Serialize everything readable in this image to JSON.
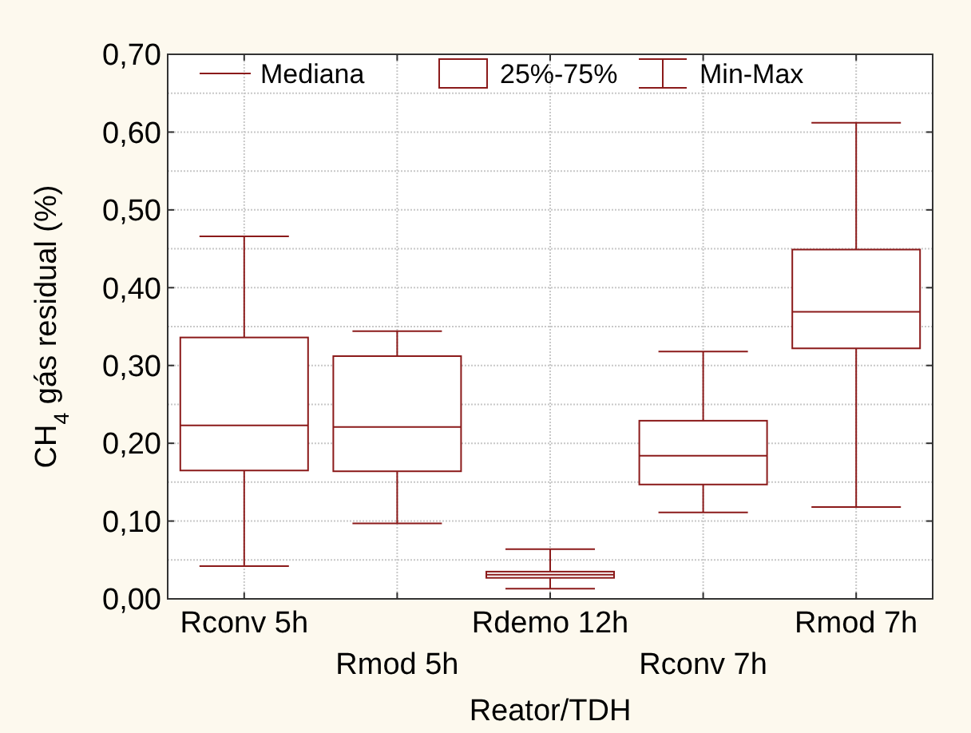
{
  "chart_data": {
    "type": "box",
    "xlabel": "Reator/TDH",
    "ylabel": "CH$_{4}$ gás residual (%)",
    "categories": [
      "Rconv 5h",
      "Rmod 5h",
      "Rdemo 12h",
      "Rconv 7h",
      "Rmod 7h"
    ],
    "series": [
      {
        "color": "#8b1a1a",
        "boxes": [
          {
            "low": 0.042,
            "q1": 0.165,
            "median": 0.223,
            "q3": 0.336,
            "high": 0.466
          },
          {
            "low": 0.097,
            "q1": 0.164,
            "median": 0.221,
            "q3": 0.312,
            "high": 0.344
          },
          {
            "low": 0.013,
            "q1": 0.027,
            "median": 0.031,
            "q3": 0.035,
            "high": 0.064
          },
          {
            "low": 0.111,
            "q1": 0.147,
            "median": 0.184,
            "q3": 0.229,
            "high": 0.318
          },
          {
            "low": 0.118,
            "q1": 0.322,
            "median": 0.369,
            "q3": 0.449,
            "high": 0.612
          }
        ]
      }
    ],
    "ylim": [
      0,
      0.7
    ],
    "yticks": [
      {
        "value": 0,
        "label": "0,00"
      },
      {
        "value": 0.05,
        "label": null
      },
      {
        "value": 0.1,
        "label": "0,10"
      },
      {
        "value": 0.15,
        "label": null
      },
      {
        "value": 0.2,
        "label": "0,20"
      },
      {
        "value": 0.25,
        "label": null
      },
      {
        "value": 0.3,
        "label": "0,30"
      },
      {
        "value": 0.35,
        "label": null
      },
      {
        "value": 0.4,
        "label": "0,40"
      },
      {
        "value": 0.45,
        "label": null
      },
      {
        "value": 0.5,
        "label": "0,50"
      },
      {
        "value": 0.55,
        "label": null
      },
      {
        "value": 0.6,
        "label": "0,60"
      },
      {
        "value": 0.65,
        "label": null
      },
      {
        "value": 0.7,
        "label": "0,70"
      }
    ],
    "grid": true,
    "annotations": [
      "Mediana",
      "25%-75%",
      "Min-Max"
    ]
  }
}
